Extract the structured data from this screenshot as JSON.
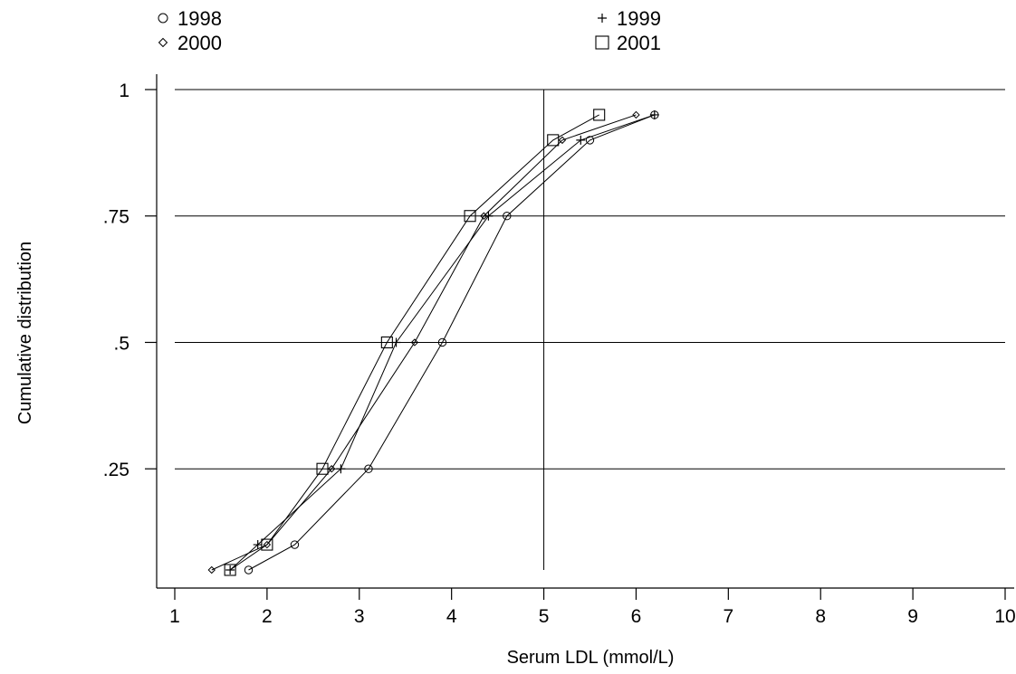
{
  "chart_data": {
    "type": "line",
    "xlabel": "Serum LDL (mmol/L)",
    "ylabel": "Cumulative distribution",
    "xlim": [
      1,
      10
    ],
    "ylim": [
      0.05,
      1
    ],
    "x_ticks": [
      "1",
      "2",
      "3",
      "4",
      "5",
      "6",
      "7",
      "8",
      "9",
      "10"
    ],
    "x_tick_values": [
      1,
      2,
      3,
      4,
      5,
      6,
      7,
      8,
      9,
      10
    ],
    "y_ticks": [
      ".25",
      ".5",
      ".75",
      "1"
    ],
    "y_tick_values": [
      0.25,
      0.5,
      0.75,
      1
    ],
    "gridlines_y": true,
    "reference_line_x": 5,
    "legend_position": "top",
    "series": [
      {
        "name": "1998",
        "marker": "circle",
        "points": [
          [
            1.8,
            0.05
          ],
          [
            2.3,
            0.1
          ],
          [
            3.1,
            0.25
          ],
          [
            3.9,
            0.5
          ],
          [
            4.6,
            0.75
          ],
          [
            5.5,
            0.9
          ],
          [
            6.2,
            0.95
          ]
        ]
      },
      {
        "name": "1999",
        "marker": "plus",
        "points": [
          [
            1.6,
            0.05
          ],
          [
            1.9,
            0.1
          ],
          [
            2.8,
            0.25
          ],
          [
            3.4,
            0.5
          ],
          [
            4.4,
            0.75
          ],
          [
            5.4,
            0.9
          ],
          [
            6.2,
            0.95
          ]
        ]
      },
      {
        "name": "2000",
        "marker": "diamond",
        "points": [
          [
            1.4,
            0.05
          ],
          [
            2.0,
            0.1
          ],
          [
            2.7,
            0.25
          ],
          [
            3.6,
            0.5
          ],
          [
            4.35,
            0.75
          ],
          [
            5.2,
            0.9
          ],
          [
            6.0,
            0.95
          ]
        ]
      },
      {
        "name": "2001",
        "marker": "square",
        "points": [
          [
            1.6,
            0.05
          ],
          [
            2.0,
            0.1
          ],
          [
            2.6,
            0.25
          ],
          [
            3.3,
            0.5
          ],
          [
            4.2,
            0.75
          ],
          [
            5.1,
            0.9
          ],
          [
            5.6,
            0.95
          ]
        ]
      }
    ]
  }
}
